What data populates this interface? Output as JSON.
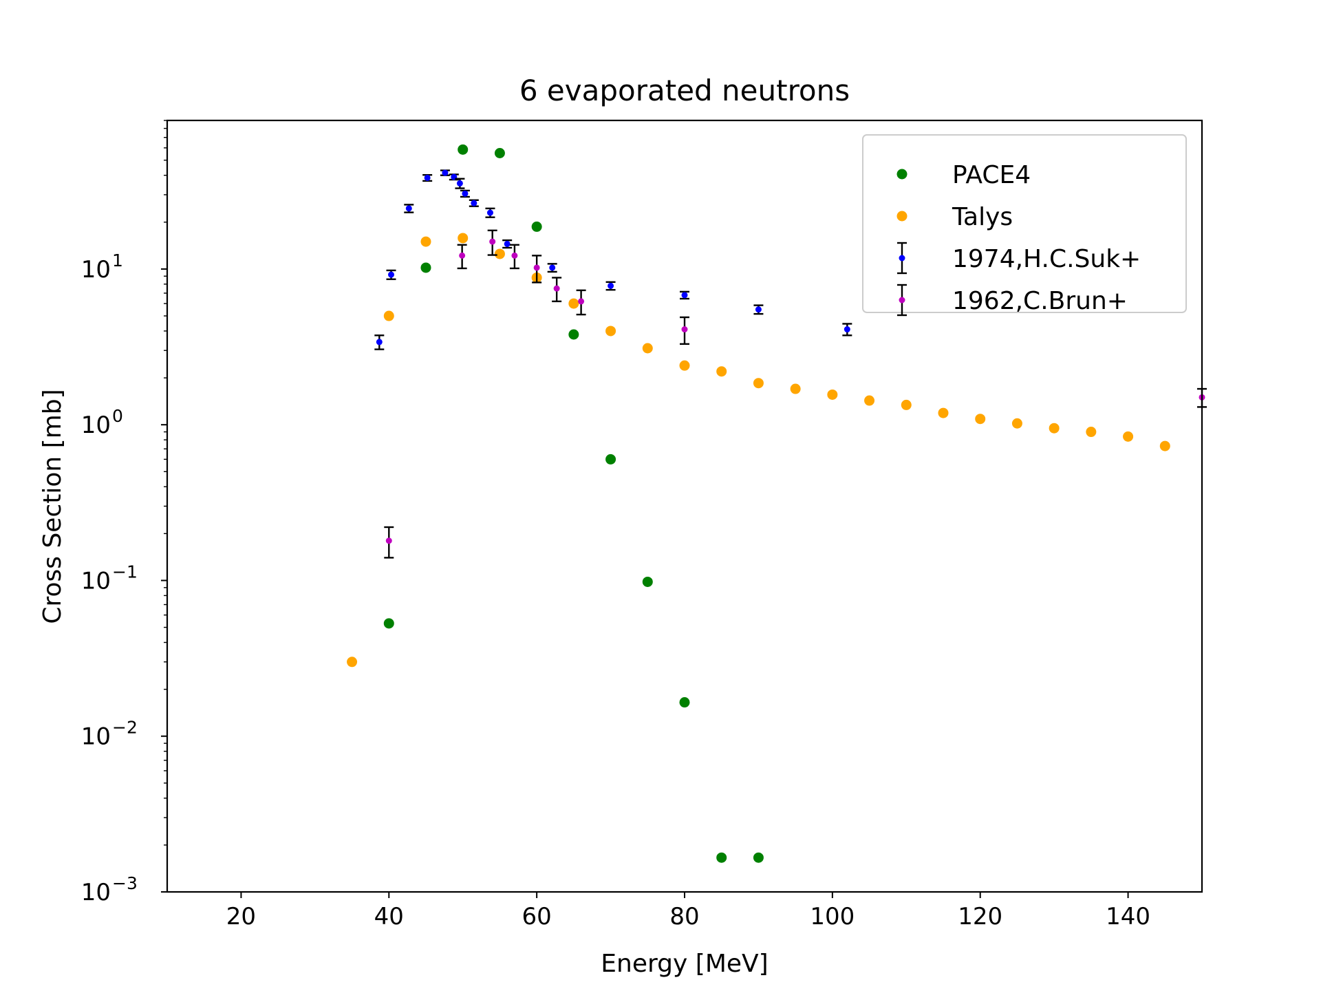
{
  "chart_data": {
    "type": "scatter",
    "title": "6 evaporated neutrons",
    "xlabel": "Energy [MeV]",
    "ylabel": "Cross Section [mb]",
    "xlim": [
      10,
      150
    ],
    "ylim": [
      0.001,
      90
    ],
    "yscale": "log",
    "grid": false,
    "legend_position": "top-right",
    "x_ticks": [
      20,
      40,
      60,
      80,
      100,
      120,
      140
    ],
    "y_ticks": [
      {
        "value": 0.001,
        "base": "10",
        "exp": "−3"
      },
      {
        "value": 0.01,
        "base": "10",
        "exp": "−2"
      },
      {
        "value": 0.1,
        "base": "10",
        "exp": "−1"
      },
      {
        "value": 1,
        "base": "10",
        "exp": "0"
      },
      {
        "value": 10,
        "base": "10",
        "exp": "1"
      }
    ],
    "series": [
      {
        "name": "PACE4",
        "kind": "points",
        "color": "#008000",
        "points": [
          [
            40,
            0.053
          ],
          [
            45,
            10.2
          ],
          [
            50,
            58.5
          ],
          [
            55,
            55.5
          ],
          [
            60,
            18.7
          ],
          [
            65,
            3.8
          ],
          [
            70,
            0.6
          ],
          [
            75,
            0.098
          ],
          [
            80,
            0.0165
          ],
          [
            85,
            0.00166
          ],
          [
            90,
            0.00166
          ]
        ]
      },
      {
        "name": "Talys",
        "kind": "points",
        "color": "#ffa500",
        "points": [
          [
            35,
            0.03
          ],
          [
            40,
            5.0
          ],
          [
            45,
            15.0
          ],
          [
            50,
            15.8
          ],
          [
            55,
            12.5
          ],
          [
            60,
            8.8
          ],
          [
            65,
            6.0
          ],
          [
            70,
            4.0
          ],
          [
            75,
            3.1
          ],
          [
            80,
            2.4
          ],
          [
            85,
            2.2
          ],
          [
            90,
            1.85
          ],
          [
            95,
            1.7
          ],
          [
            100,
            1.56
          ],
          [
            105,
            1.43
          ],
          [
            110,
            1.34
          ],
          [
            115,
            1.19
          ],
          [
            120,
            1.09
          ],
          [
            125,
            1.02
          ],
          [
            130,
            0.95
          ],
          [
            135,
            0.9
          ],
          [
            140,
            0.84
          ],
          [
            145,
            0.73
          ]
        ]
      },
      {
        "name": "1974,H.C.Suk+",
        "kind": "errorbar",
        "color": "#0000ff",
        "points": [
          [
            38.7,
            3.4,
            0.35
          ],
          [
            40.3,
            9.2,
            0.6
          ],
          [
            42.7,
            24.5,
            1.4
          ],
          [
            45.2,
            38.5,
            1.7
          ],
          [
            47.6,
            41.5,
            1.5
          ],
          [
            48.8,
            39.0,
            1.5
          ],
          [
            49.6,
            35.5,
            2.5
          ],
          [
            50.3,
            30.5,
            1.4
          ],
          [
            51.5,
            26.5,
            1.2
          ],
          [
            53.7,
            23.0,
            1.5
          ],
          [
            56.0,
            14.5,
            0.8
          ],
          [
            62.1,
            10.2,
            0.6
          ],
          [
            70.0,
            7.8,
            0.45
          ],
          [
            80.0,
            6.8,
            0.35
          ],
          [
            90.0,
            5.5,
            0.35
          ],
          [
            102.0,
            4.1,
            0.35
          ]
        ]
      },
      {
        "name": "1962,C.Brun+",
        "kind": "errorbar",
        "color": "#bf00bf",
        "points": [
          [
            40.0,
            0.18,
            0.04
          ],
          [
            49.9,
            12.2,
            2.1
          ],
          [
            54.0,
            15.0,
            2.7
          ],
          [
            57.0,
            12.2,
            2.1
          ],
          [
            60.0,
            10.2,
            2.0
          ],
          [
            62.7,
            7.5,
            1.3
          ],
          [
            66.0,
            6.2,
            1.1
          ],
          [
            80.0,
            4.1,
            0.8
          ],
          [
            150.0,
            1.5,
            0.2
          ]
        ]
      }
    ]
  }
}
